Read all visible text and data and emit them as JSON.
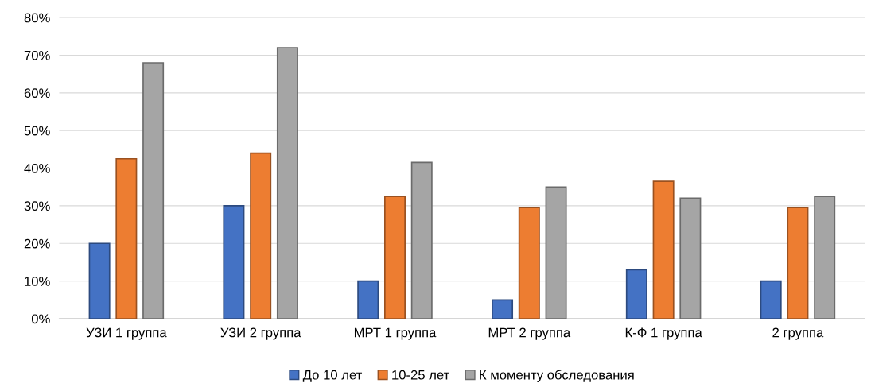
{
  "chart_data": {
    "type": "bar",
    "categories": [
      "УЗИ 1 группа",
      "УЗИ 2 группа",
      "МРТ 1 группа",
      "МРТ 2 группа",
      "К-Ф 1 группа",
      "2 группа"
    ],
    "series": [
      {
        "name": "До 10 лет",
        "color": "#4472c4",
        "values": [
          20,
          30,
          10,
          5,
          13,
          10
        ]
      },
      {
        "name": "10-25 лет",
        "color": "#ed7d31",
        "values": [
          42.5,
          44,
          32.5,
          29.5,
          36.5,
          29.5
        ]
      },
      {
        "name": "К моменту обследования",
        "color": "#a5a5a5",
        "values": [
          68,
          72,
          41.5,
          35,
          32,
          32.5
        ]
      }
    ],
    "ylim": [
      0,
      80
    ],
    "yticks": [
      {
        "value": 0,
        "label": "0%"
      },
      {
        "value": 10,
        "label": "10%"
      },
      {
        "value": 20,
        "label": "20%"
      },
      {
        "value": 30,
        "label": "30%"
      },
      {
        "value": 40,
        "label": "40%"
      },
      {
        "value": 50,
        "label": "50%"
      },
      {
        "value": 60,
        "label": "60%"
      },
      {
        "value": 70,
        "label": "70%"
      },
      {
        "value": 80,
        "label": "80%"
      }
    ],
    "grid": "y",
    "legend": "bottom"
  }
}
